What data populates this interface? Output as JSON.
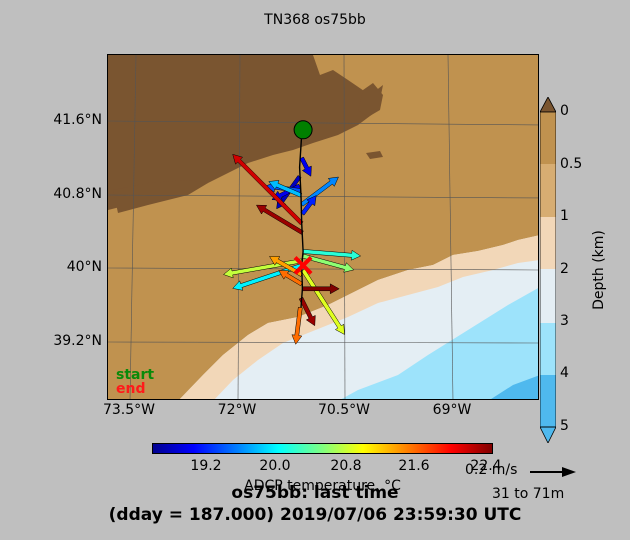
{
  "plot_title": "TN368 os75bb",
  "title_line1": "os75bb: last time",
  "title_line2": "(dday = 187.000) 2019/07/06 23:59:30 UTC",
  "legend": {
    "start": "start",
    "end": "end",
    "start_color": "#008000",
    "end_color": "#ff0000"
  },
  "colors": {
    "land": "#c0924f",
    "land_dark": "#7a5530",
    "shelf": "#f2d7b8",
    "slope": "#e4eef4",
    "deep": "#9de3fb",
    "deeper": "#4fb9ee"
  },
  "chart_data": {
    "type": "map-quiver",
    "x_axis": {
      "label": "",
      "ticks": [
        "73.5°W",
        "72°W",
        "70.5°W",
        "69°W"
      ],
      "range": [
        -73.5,
        -67.3
      ]
    },
    "y_axis": {
      "label": "",
      "ticks": [
        "41.6°N",
        "40.8°N",
        "40°N",
        "39.2°N"
      ],
      "range": [
        38.6,
        42.3
      ]
    },
    "depth_colorbar": {
      "label": "Depth (km)",
      "ticks": [
        "0",
        "0.5",
        "1",
        "2",
        "3",
        "4",
        "5"
      ]
    },
    "temperature_colorbar": {
      "label": "ADCP temperature, °C",
      "ticks": [
        "19.2",
        "20.0",
        "20.8",
        "21.6",
        "22.4"
      ],
      "range": [
        18.6,
        22.5
      ]
    },
    "reference_vector": {
      "label": "0.2 m/s"
    },
    "depth_range_label": "31 to 71m",
    "start_point": {
      "lon": -70.7,
      "lat": 41.5
    },
    "end_point": {
      "lon": -70.7,
      "lat": 40.05
    },
    "track": [
      {
        "lon": -70.72,
        "lat": 41.45
      },
      {
        "lon": -70.75,
        "lat": 41.1
      },
      {
        "lon": -70.73,
        "lat": 40.8
      },
      {
        "lon": -70.72,
        "lat": 40.5
      },
      {
        "lon": -70.7,
        "lat": 40.2
      },
      {
        "lon": -70.72,
        "lat": 40.05
      },
      {
        "lon": -70.71,
        "lat": 39.8
      },
      {
        "lon": -70.73,
        "lat": 39.6
      }
    ],
    "vectors": [
      {
        "lon": -70.72,
        "lat": 41.2,
        "u": 0.04,
        "v": -0.08,
        "t": 19.0
      },
      {
        "lon": -70.75,
        "lat": 41.0,
        "u": -0.1,
        "v": -0.14,
        "t": 18.8
      },
      {
        "lon": -70.75,
        "lat": 40.9,
        "u": -0.12,
        "v": -0.06,
        "t": 19.0
      },
      {
        "lon": -70.74,
        "lat": 40.85,
        "u": -0.15,
        "v": 0.02,
        "t": 19.4
      },
      {
        "lon": -70.73,
        "lat": 40.8,
        "u": -0.14,
        "v": 0.06,
        "t": 19.8
      },
      {
        "lon": -70.72,
        "lat": 40.7,
        "u": 0.16,
        "v": 0.12,
        "t": 19.6
      },
      {
        "lon": -70.71,
        "lat": 40.6,
        "u": 0.06,
        "v": 0.08,
        "t": 19.2
      },
      {
        "lon": -70.72,
        "lat": 40.5,
        "u": -0.3,
        "v": 0.3,
        "t": 22.2
      },
      {
        "lon": -70.71,
        "lat": 40.4,
        "u": -0.2,
        "v": 0.12,
        "t": 22.4
      },
      {
        "lon": -70.7,
        "lat": 40.2,
        "u": 0.25,
        "v": -0.02,
        "t": 20.2
      },
      {
        "lon": -70.7,
        "lat": 40.15,
        "u": 0.22,
        "v": -0.06,
        "t": 20.6
      },
      {
        "lon": -70.72,
        "lat": 40.1,
        "u": -0.34,
        "v": -0.06,
        "t": 20.8
      },
      {
        "lon": -70.72,
        "lat": 40.05,
        "u": -0.3,
        "v": -0.1,
        "t": 20.0
      },
      {
        "lon": -70.7,
        "lat": 40.0,
        "u": 0.18,
        "v": -0.28,
        "t": 20.9
      },
      {
        "lon": -70.72,
        "lat": 39.95,
        "u": -0.14,
        "v": 0.08,
        "t": 21.4
      },
      {
        "lon": -70.72,
        "lat": 39.85,
        "u": -0.1,
        "v": 0.06,
        "t": 21.6
      },
      {
        "lon": -70.71,
        "lat": 39.8,
        "u": 0.16,
        "v": 0.0,
        "t": 22.5
      },
      {
        "lon": -70.73,
        "lat": 39.7,
        "u": 0.06,
        "v": -0.12,
        "t": 22.4
      },
      {
        "lon": -70.74,
        "lat": 39.6,
        "u": -0.02,
        "v": -0.16,
        "t": 21.6
      }
    ]
  }
}
